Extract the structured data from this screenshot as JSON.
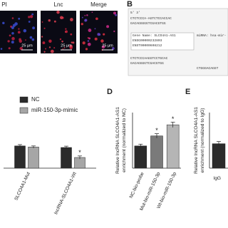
{
  "image_labels": [
    "PI",
    "Lnc",
    "Merge"
  ],
  "scale_bar": "25 μm",
  "panel_b": {
    "label": "B",
    "lines": [
      "5'                         3'",
      "CTCTCCCA-AGTCTCCACCAC",
      "GACAGGGGGTCGACGTGG",
      "Gene Name: SLCO4A1-AS1",
      "ENSG00000232803",
      "ENST00000608212",
      "miRNA: hsa-mir-",
      "CTCTCCCAAGGTCCTGCAC",
      "GACAGGGGTCGACGTGG",
      "CTGGGACAGGT"
    ]
  },
  "chart_data": [
    {
      "type": "bar",
      "categories": [
        "SLCO4A1-Mut",
        "lncRNA-SLCO4A1-Wt"
      ],
      "ylim": [
        0,
        2.5
      ],
      "series": [
        {
          "name": "NC",
          "color": "#2b2b2b",
          "values": [
            1.0,
            0.93
          ],
          "errors": [
            0.06,
            0.06
          ],
          "markers": [
            null,
            null
          ]
        },
        {
          "name": "miR-150-3p-mimic",
          "color": "#a6a6a6",
          "values": [
            0.95,
            0.48
          ],
          "errors": [
            0.05,
            0.07
          ],
          "markers": [
            null,
            "*"
          ]
        }
      ]
    },
    {
      "type": "bar",
      "label": "D",
      "ylabel": [
        "Relative lncRNA SLCO4A1-AS1",
        "enrichment (normalized to NC)"
      ],
      "categories": [
        "NC-bio-probe",
        "Mut-bio-miR-150-3p",
        "Wt-bio-miR-150-3p"
      ],
      "ylim": [
        0,
        2.5
      ],
      "series": [
        {
          "colors": [
            "#2b2b2b",
            "#7a7a7a",
            "#b5b5b5"
          ],
          "values": [
            1.0,
            1.45,
            1.95
          ],
          "errors": [
            0.08,
            0.1,
            0.12
          ],
          "markers": [
            null,
            "*",
            "*"
          ]
        }
      ]
    },
    {
      "type": "bar",
      "label": "E",
      "ylabel": [
        "Relative lncRNA SLCO4A1-AS1",
        "enrichment (normalized to IgG)"
      ],
      "categories": [
        "IgG"
      ],
      "ylim": [
        0,
        2.5
      ],
      "series": [
        {
          "colors": [
            "#2b2b2b"
          ],
          "values": [
            1.1
          ],
          "errors": [
            0.1
          ],
          "markers": [
            null
          ]
        }
      ]
    }
  ]
}
